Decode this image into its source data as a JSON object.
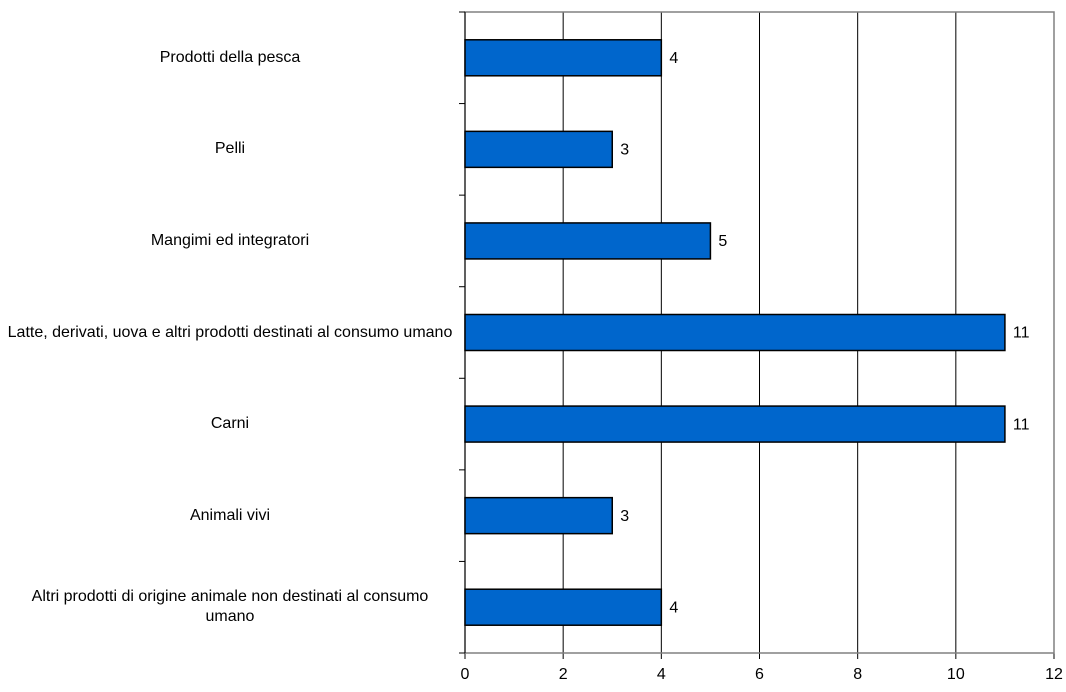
{
  "chart_data": {
    "type": "bar",
    "orientation": "horizontal",
    "categories": [
      "Prodotti della pesca",
      "Pelli",
      "Mangimi ed integratori",
      "Latte, derivati, uova e altri prodotti destinati al consumo umano",
      "Carni",
      "Animali vivi",
      "Altri prodotti di origine animale non destinati al consumo umano"
    ],
    "values": [
      4,
      3,
      5,
      11,
      11,
      3,
      4
    ],
    "color": "#0066cc",
    "xlim": [
      0,
      12
    ],
    "xticks": [
      0,
      2,
      4,
      6,
      8,
      10,
      12
    ],
    "grid": true
  }
}
